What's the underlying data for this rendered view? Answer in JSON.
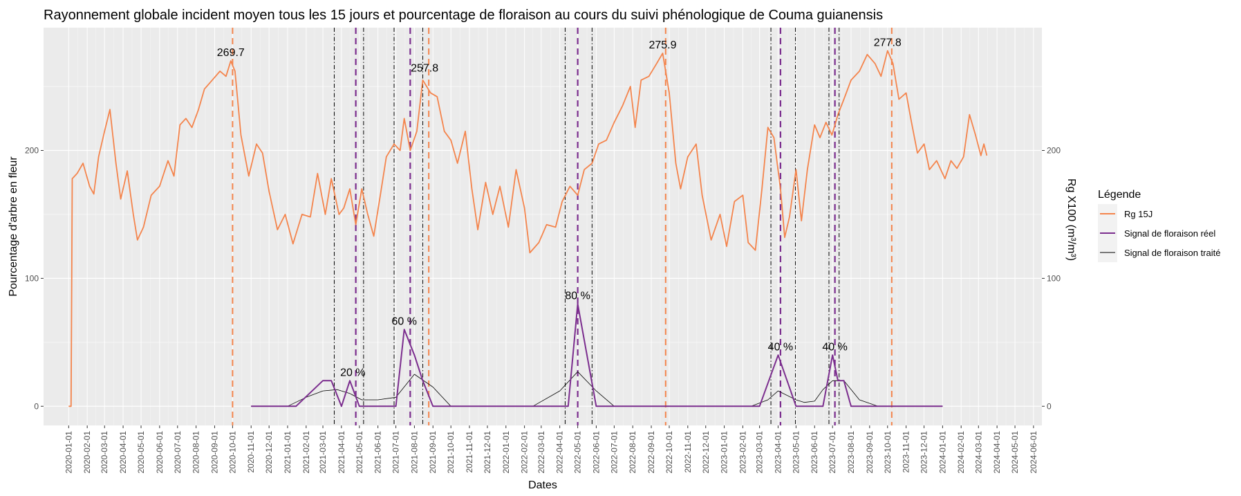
{
  "chart_data": {
    "type": "line",
    "title": "Rayonnement globale incident moyen tous les 15 jours  et pourcentage de floraison au cours du suivi phénologique de Couma guianensis",
    "xlabel": "Dates",
    "ylabel": "Pourcentage d'arbre en fleur",
    "y2label": "Rg X100 (m³/m³)",
    "ylim": [
      -15,
      296
    ],
    "yticks": [
      0,
      100,
      200
    ],
    "xlim": [
      "2019-11-20",
      "2024-06-15"
    ],
    "xticks": [
      "2020-01-01",
      "2020-02-01",
      "2020-03-01",
      "2020-04-01",
      "2020-05-01",
      "2020-06-01",
      "2020-07-01",
      "2020-08-01",
      "2020-09-01",
      "2020-10-01",
      "2020-11-01",
      "2020-12-01",
      "2021-01-01",
      "2021-02-01",
      "2021-03-01",
      "2021-04-01",
      "2021-05-01",
      "2021-06-01",
      "2021-07-01",
      "2021-08-01",
      "2021-09-01",
      "2021-10-01",
      "2021-11-01",
      "2021-12-01",
      "2022-01-01",
      "2022-02-01",
      "2022-03-01",
      "2022-04-01",
      "2022-05-01",
      "2022-06-01",
      "2022-07-01",
      "2022-08-01",
      "2022-09-01",
      "2022-10-01",
      "2022-11-01",
      "2022-12-01",
      "2023-01-01",
      "2023-02-01",
      "2023-03-01",
      "2023-04-01",
      "2023-05-01",
      "2023-06-01",
      "2023-07-01",
      "2023-08-01",
      "2023-09-01",
      "2023-10-01",
      "2023-11-01",
      "2023-12-01",
      "2024-01-01",
      "2024-02-01",
      "2024-03-01",
      "2024-04-01",
      "2024-05-01",
      "2024-06-01"
    ],
    "grid": true,
    "legend": {
      "title": "Légende",
      "position": "right",
      "entries": [
        {
          "label": "Rg 15J",
          "color": "#f4844c"
        },
        {
          "label": "Signal de floraison réel",
          "color": "#7b2d8e"
        },
        {
          "label": "Signal de floraison traité",
          "color": "#000000"
        }
      ]
    },
    "series": [
      {
        "name": "Rg 15J",
        "color": "#f4844c",
        "points": [
          [
            "2020-01-01",
            0
          ],
          [
            "2020-01-05",
            0
          ],
          [
            "2020-01-07",
            178
          ],
          [
            "2020-01-15",
            182
          ],
          [
            "2020-01-25",
            190
          ],
          [
            "2020-02-05",
            172
          ],
          [
            "2020-02-12",
            166
          ],
          [
            "2020-02-20",
            195
          ],
          [
            "2020-03-01",
            215
          ],
          [
            "2020-03-10",
            232
          ],
          [
            "2020-03-20",
            190
          ],
          [
            "2020-03-28",
            162
          ],
          [
            "2020-04-08",
            184
          ],
          [
            "2020-04-18",
            150
          ],
          [
            "2020-04-25",
            130
          ],
          [
            "2020-05-05",
            140
          ],
          [
            "2020-05-18",
            165
          ],
          [
            "2020-06-01",
            172
          ],
          [
            "2020-06-15",
            192
          ],
          [
            "2020-06-25",
            180
          ],
          [
            "2020-07-05",
            220
          ],
          [
            "2020-07-15",
            225
          ],
          [
            "2020-07-25",
            218
          ],
          [
            "2020-08-05",
            232
          ],
          [
            "2020-08-15",
            248
          ],
          [
            "2020-08-28",
            255
          ],
          [
            "2020-09-10",
            262
          ],
          [
            "2020-09-20",
            258
          ],
          [
            "2020-09-28",
            270
          ],
          [
            "2020-10-05",
            262
          ],
          [
            "2020-10-15",
            212
          ],
          [
            "2020-10-28",
            180
          ],
          [
            "2020-11-10",
            205
          ],
          [
            "2020-11-20",
            198
          ],
          [
            "2020-12-01",
            168
          ],
          [
            "2020-12-15",
            138
          ],
          [
            "2020-12-28",
            150
          ],
          [
            "2021-01-10",
            127
          ],
          [
            "2021-01-25",
            150
          ],
          [
            "2021-02-08",
            148
          ],
          [
            "2021-02-20",
            182
          ],
          [
            "2021-03-05",
            150
          ],
          [
            "2021-03-15",
            178
          ],
          [
            "2021-03-28",
            150
          ],
          [
            "2021-04-05",
            155
          ],
          [
            "2021-04-15",
            170
          ],
          [
            "2021-04-25",
            142
          ],
          [
            "2021-05-05",
            170
          ],
          [
            "2021-05-15",
            150
          ],
          [
            "2021-05-25",
            133
          ],
          [
            "2021-06-05",
            165
          ],
          [
            "2021-06-15",
            195
          ],
          [
            "2021-06-28",
            205
          ],
          [
            "2021-07-08",
            200
          ],
          [
            "2021-07-15",
            225
          ],
          [
            "2021-07-25",
            200
          ],
          [
            "2021-08-05",
            215
          ],
          [
            "2021-08-15",
            255
          ],
          [
            "2021-08-28",
            245
          ],
          [
            "2021-09-08",
            242
          ],
          [
            "2021-09-20",
            215
          ],
          [
            "2021-10-01",
            208
          ],
          [
            "2021-10-12",
            190
          ],
          [
            "2021-10-25",
            215
          ],
          [
            "2021-11-05",
            170
          ],
          [
            "2021-11-15",
            138
          ],
          [
            "2021-11-28",
            175
          ],
          [
            "2021-12-10",
            150
          ],
          [
            "2021-12-22",
            172
          ],
          [
            "2022-01-05",
            140
          ],
          [
            "2022-01-18",
            185
          ],
          [
            "2022-02-01",
            155
          ],
          [
            "2022-02-10",
            120
          ],
          [
            "2022-02-25",
            128
          ],
          [
            "2022-03-10",
            142
          ],
          [
            "2022-03-25",
            140
          ],
          [
            "2022-04-05",
            160
          ],
          [
            "2022-04-18",
            172
          ],
          [
            "2022-05-01",
            165
          ],
          [
            "2022-05-12",
            185
          ],
          [
            "2022-05-25",
            190
          ],
          [
            "2022-06-05",
            205
          ],
          [
            "2022-06-18",
            208
          ],
          [
            "2022-07-01",
            222
          ],
          [
            "2022-07-15",
            235
          ],
          [
            "2022-07-28",
            250
          ],
          [
            "2022-08-05",
            218
          ],
          [
            "2022-08-15",
            255
          ],
          [
            "2022-08-28",
            258
          ],
          [
            "2022-09-10",
            268
          ],
          [
            "2022-09-20",
            276
          ],
          [
            "2022-10-01",
            245
          ],
          [
            "2022-10-12",
            190
          ],
          [
            "2022-10-20",
            170
          ],
          [
            "2022-11-01",
            195
          ],
          [
            "2022-11-15",
            205
          ],
          [
            "2022-11-25",
            165
          ],
          [
            "2022-12-10",
            130
          ],
          [
            "2022-12-25",
            150
          ],
          [
            "2023-01-05",
            125
          ],
          [
            "2023-01-18",
            160
          ],
          [
            "2023-02-01",
            165
          ],
          [
            "2023-02-10",
            128
          ],
          [
            "2023-02-22",
            122
          ],
          [
            "2023-03-05",
            170
          ],
          [
            "2023-03-15",
            218
          ],
          [
            "2023-03-25",
            210
          ],
          [
            "2023-04-05",
            170
          ],
          [
            "2023-04-12",
            132
          ],
          [
            "2023-04-20",
            148
          ],
          [
            "2023-05-01",
            185
          ],
          [
            "2023-05-10",
            145
          ],
          [
            "2023-05-20",
            185
          ],
          [
            "2023-06-01",
            220
          ],
          [
            "2023-06-10",
            210
          ],
          [
            "2023-06-20",
            222
          ],
          [
            "2023-06-30",
            212
          ],
          [
            "2023-07-10",
            228
          ],
          [
            "2023-07-20",
            240
          ],
          [
            "2023-08-01",
            255
          ],
          [
            "2023-08-15",
            262
          ],
          [
            "2023-08-28",
            275
          ],
          [
            "2023-09-10",
            268
          ],
          [
            "2023-09-20",
            258
          ],
          [
            "2023-10-01",
            278
          ],
          [
            "2023-10-10",
            268
          ],
          [
            "2023-10-20",
            240
          ],
          [
            "2023-11-01",
            245
          ],
          [
            "2023-11-10",
            222
          ],
          [
            "2023-11-20",
            198
          ],
          [
            "2023-12-01",
            205
          ],
          [
            "2023-12-10",
            185
          ],
          [
            "2023-12-22",
            192
          ],
          [
            "2024-01-05",
            178
          ],
          [
            "2024-01-15",
            192
          ],
          [
            "2024-01-25",
            186
          ],
          [
            "2024-02-05",
            195
          ],
          [
            "2024-02-15",
            228
          ],
          [
            "2024-02-25",
            212
          ],
          [
            "2024-03-05",
            196
          ],
          [
            "2024-03-10",
            205
          ],
          [
            "2024-03-15",
            196
          ]
        ]
      },
      {
        "name": "Signal de floraison réel",
        "color": "#7b2d8e",
        "points": [
          [
            "2020-11-01",
            0
          ],
          [
            "2021-01-15",
            0
          ],
          [
            "2021-03-01",
            20
          ],
          [
            "2021-03-15",
            20
          ],
          [
            "2021-04-01",
            0
          ],
          [
            "2021-04-15",
            20
          ],
          [
            "2021-05-01",
            0
          ],
          [
            "2021-07-01",
            0
          ],
          [
            "2021-07-15",
            60
          ],
          [
            "2021-08-01",
            40
          ],
          [
            "2021-08-15",
            20
          ],
          [
            "2021-09-01",
            0
          ],
          [
            "2022-03-15",
            0
          ],
          [
            "2022-04-15",
            0
          ],
          [
            "2022-05-01",
            80
          ],
          [
            "2022-06-01",
            0
          ],
          [
            "2022-09-01",
            0
          ],
          [
            "2023-03-01",
            0
          ],
          [
            "2023-04-01",
            40
          ],
          [
            "2023-05-01",
            0
          ],
          [
            "2023-06-15",
            0
          ],
          [
            "2023-07-01",
            40
          ],
          [
            "2023-07-10",
            20
          ],
          [
            "2023-07-20",
            20
          ],
          [
            "2023-08-01",
            0
          ],
          [
            "2024-01-01",
            0
          ]
        ]
      },
      {
        "name": "Signal de floraison traité",
        "color": "#000000",
        "points": [
          [
            "2020-11-01",
            0
          ],
          [
            "2021-01-01",
            0
          ],
          [
            "2021-02-01",
            7
          ],
          [
            "2021-03-01",
            12
          ],
          [
            "2021-03-25",
            13
          ],
          [
            "2021-04-15",
            10
          ],
          [
            "2021-05-05",
            5
          ],
          [
            "2021-06-01",
            5
          ],
          [
            "2021-07-01",
            7
          ],
          [
            "2021-08-01",
            25
          ],
          [
            "2021-09-01",
            15
          ],
          [
            "2021-10-01",
            0
          ],
          [
            "2022-02-15",
            0
          ],
          [
            "2022-04-01",
            12
          ],
          [
            "2022-05-01",
            27
          ],
          [
            "2022-06-01",
            12
          ],
          [
            "2022-07-01",
            0
          ],
          [
            "2023-02-15",
            0
          ],
          [
            "2023-03-15",
            5
          ],
          [
            "2023-04-01",
            12
          ],
          [
            "2023-05-01",
            5
          ],
          [
            "2023-05-15",
            3
          ],
          [
            "2023-06-01",
            4
          ],
          [
            "2023-06-15",
            13
          ],
          [
            "2023-07-01",
            20
          ],
          [
            "2023-07-20",
            20
          ],
          [
            "2023-08-15",
            5
          ],
          [
            "2023-09-15",
            0
          ],
          [
            "2024-01-01",
            0
          ]
        ]
      }
    ],
    "rg_peak_lines": {
      "color": "#f4844c",
      "dates": [
        "2020-10-01",
        "2021-08-25",
        "2022-09-25",
        "2023-10-08"
      ]
    },
    "flowering_peak_lines": {
      "color": "#7b2d8e",
      "dates": [
        "2021-04-25",
        "2021-07-25",
        "2022-05-01",
        "2023-04-05",
        "2023-07-05"
      ]
    },
    "window_lines": {
      "color": "#000000",
      "dates": [
        "2021-03-20",
        "2021-05-08",
        "2021-06-28",
        "2021-08-15",
        "2022-04-10",
        "2022-05-25",
        "2023-03-20",
        "2023-04-30",
        "2023-06-25",
        "2023-07-12"
      ]
    },
    "annotations": [
      {
        "text": "269.7",
        "x": "2020-09-28",
        "y": 270
      },
      {
        "text": "257.8",
        "x": "2021-08-18",
        "y": 258
      },
      {
        "text": "275.9",
        "x": "2022-09-20",
        "y": 276
      },
      {
        "text": "277.8",
        "x": "2023-10-01",
        "y": 278
      },
      {
        "text": "20 %",
        "x": "2021-04-20",
        "y": 20
      },
      {
        "text": "60 %",
        "x": "2021-07-15",
        "y": 60
      },
      {
        "text": "80 %",
        "x": "2022-05-01",
        "y": 80
      },
      {
        "text": "40 %",
        "x": "2023-04-05",
        "y": 40
      },
      {
        "text": "40 %",
        "x": "2023-07-05",
        "y": 40
      }
    ]
  }
}
